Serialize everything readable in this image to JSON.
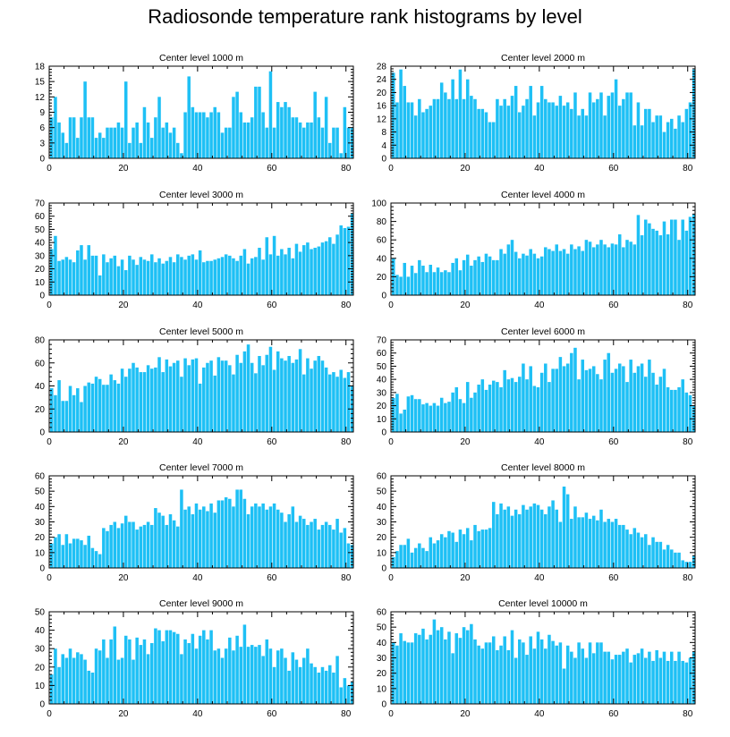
{
  "title": "Radiosonde temperature rank histograms by level",
  "bar_color": "#1ec0f5",
  "chart_data": [
    {
      "type": "bar",
      "title": "Center level 1000 m",
      "xlim": [
        0,
        82
      ],
      "ylim": [
        0,
        18
      ],
      "xticks": [
        0,
        20,
        40,
        60,
        80
      ],
      "yticks": [
        0,
        3,
        6,
        9,
        12,
        15,
        18
      ],
      "values": [
        8,
        12,
        7,
        5,
        3,
        8,
        8,
        4,
        8,
        15,
        8,
        8,
        4,
        5,
        4,
        6,
        6,
        6,
        7,
        6,
        15,
        3,
        6,
        7,
        3,
        10,
        7,
        4,
        8,
        12,
        6,
        7,
        5,
        6,
        3,
        1,
        9,
        16,
        10,
        9,
        9,
        9,
        8,
        9,
        10,
        9,
        5,
        6,
        6,
        12,
        13,
        9,
        7,
        7,
        8,
        14,
        14,
        9,
        6,
        17,
        6,
        11,
        10,
        11,
        10,
        8,
        8,
        7,
        6,
        7,
        7,
        13,
        8,
        6,
        12,
        3,
        6,
        6,
        1,
        10,
        6,
        6
      ]
    },
    {
      "type": "bar",
      "title": "Center level 2000 m",
      "xlim": [
        0,
        82
      ],
      "ylim": [
        0,
        28
      ],
      "xticks": [
        0,
        20,
        40,
        60,
        80
      ],
      "yticks": [
        0,
        4,
        8,
        12,
        16,
        20,
        24,
        28
      ],
      "values": [
        26,
        17,
        27,
        22,
        17,
        17,
        13,
        18,
        14,
        15,
        16,
        18,
        18,
        23,
        20,
        18,
        24,
        18,
        27,
        18,
        24,
        19,
        18,
        15,
        15,
        14,
        11,
        11,
        18,
        16,
        18,
        16,
        19,
        22,
        14,
        16,
        18,
        22,
        13,
        17,
        22,
        18,
        17,
        17,
        16,
        19,
        16,
        17,
        15,
        20,
        13,
        15,
        13,
        20,
        17,
        18,
        20,
        13,
        19,
        20,
        24,
        16,
        18,
        20,
        20,
        10,
        17,
        10,
        15,
        15,
        11,
        13,
        13,
        8,
        11,
        12,
        9,
        13,
        11,
        15,
        17,
        27
      ]
    },
    {
      "type": "bar",
      "title": "Center level 3000 m",
      "xlim": [
        0,
        82
      ],
      "ylim": [
        0,
        70
      ],
      "xticks": [
        0,
        20,
        40,
        60,
        80
      ],
      "yticks": [
        0,
        10,
        20,
        30,
        40,
        50,
        60,
        70
      ],
      "values": [
        35,
        45,
        26,
        27,
        29,
        27,
        25,
        34,
        38,
        27,
        38,
        30,
        30,
        15,
        31,
        25,
        28,
        30,
        22,
        27,
        19,
        30,
        27,
        23,
        29,
        27,
        26,
        31,
        25,
        28,
        24,
        26,
        29,
        25,
        31,
        29,
        27,
        30,
        31,
        27,
        34,
        25,
        26,
        26,
        27,
        28,
        29,
        31,
        30,
        28,
        26,
        30,
        35,
        24,
        28,
        29,
        36,
        27,
        44,
        31,
        45,
        30,
        35,
        31,
        36,
        28,
        39,
        33,
        38,
        40,
        35,
        36,
        37,
        40,
        41,
        44,
        39,
        46,
        53,
        51,
        52,
        62
      ]
    },
    {
      "type": "bar",
      "title": "Center level 4000 m",
      "xlim": [
        0,
        82
      ],
      "ylim": [
        0,
        100
      ],
      "xticks": [
        0,
        20,
        40,
        60,
        80
      ],
      "yticks": [
        0,
        20,
        40,
        60,
        80,
        100
      ],
      "values": [
        40,
        22,
        20,
        35,
        20,
        32,
        24,
        38,
        32,
        25,
        33,
        25,
        30,
        25,
        27,
        25,
        35,
        40,
        27,
        38,
        44,
        32,
        38,
        42,
        36,
        45,
        42,
        38,
        38,
        50,
        45,
        55,
        60,
        47,
        40,
        45,
        43,
        50,
        45,
        40,
        42,
        52,
        50,
        48,
        55,
        48,
        50,
        45,
        55,
        50,
        53,
        48,
        60,
        58,
        52,
        55,
        60,
        55,
        52,
        56,
        55,
        66,
        52,
        60,
        58,
        55,
        87,
        65,
        82,
        78,
        72,
        70,
        65,
        80,
        66,
        82,
        82,
        60,
        82,
        70,
        85,
        88
      ]
    },
    {
      "type": "bar",
      "title": "Center level 5000 m",
      "xlim": [
        0,
        82
      ],
      "ylim": [
        0,
        80
      ],
      "xticks": [
        0,
        20,
        40,
        60,
        80
      ],
      "yticks": [
        0,
        20,
        40,
        60,
        80
      ],
      "values": [
        38,
        32,
        45,
        27,
        27,
        40,
        32,
        38,
        26,
        40,
        43,
        42,
        48,
        46,
        41,
        41,
        50,
        45,
        42,
        55,
        48,
        55,
        60,
        56,
        52,
        52,
        58,
        55,
        56,
        65,
        52,
        63,
        57,
        60,
        62,
        48,
        64,
        58,
        63,
        64,
        42,
        56,
        60,
        62,
        49,
        65,
        62,
        62,
        58,
        50,
        67,
        60,
        70,
        76,
        60,
        51,
        66,
        58,
        67,
        74,
        54,
        70,
        64,
        62,
        66,
        60,
        63,
        72,
        50,
        64,
        55,
        62,
        66,
        62,
        56,
        50,
        52,
        48,
        54,
        47,
        52,
        40
      ]
    },
    {
      "type": "bar",
      "title": "Center level 6000 m",
      "xlim": [
        0,
        82
      ],
      "ylim": [
        0,
        70
      ],
      "xticks": [
        0,
        20,
        40,
        60,
        80
      ],
      "yticks": [
        0,
        10,
        20,
        30,
        40,
        50,
        60,
        70
      ],
      "values": [
        26,
        29,
        14,
        17,
        27,
        28,
        25,
        25,
        21,
        22,
        20,
        22,
        20,
        26,
        22,
        23,
        30,
        34,
        25,
        22,
        38,
        26,
        30,
        36,
        40,
        32,
        36,
        39,
        38,
        34,
        47,
        40,
        41,
        38,
        42,
        52,
        40,
        50,
        35,
        34,
        45,
        52,
        38,
        48,
        48,
        57,
        50,
        52,
        60,
        64,
        40,
        55,
        47,
        48,
        50,
        44,
        40,
        55,
        60,
        45,
        48,
        52,
        50,
        38,
        55,
        45,
        50,
        52,
        42,
        55,
        45,
        36,
        42,
        48,
        34,
        32,
        32,
        34,
        40,
        30,
        28,
        20
      ]
    },
    {
      "type": "bar",
      "title": "Center level 7000 m",
      "xlim": [
        0,
        82
      ],
      "ylim": [
        0,
        60
      ],
      "xticks": [
        0,
        20,
        40,
        60,
        80
      ],
      "yticks": [
        0,
        10,
        20,
        30,
        40,
        50,
        60
      ],
      "values": [
        16,
        20,
        22,
        15,
        22,
        16,
        19,
        19,
        18,
        15,
        21,
        13,
        11,
        9,
        26,
        24,
        28,
        30,
        26,
        29,
        34,
        30,
        30,
        25,
        27,
        28,
        30,
        28,
        39,
        36,
        34,
        28,
        35,
        31,
        27,
        51,
        38,
        40,
        35,
        42,
        38,
        40,
        37,
        42,
        36,
        44,
        44,
        46,
        45,
        40,
        51,
        51,
        45,
        35,
        40,
        42,
        40,
        42,
        38,
        40,
        42,
        38,
        36,
        30,
        35,
        40,
        30,
        34,
        32,
        28,
        30,
        32,
        25,
        28,
        30,
        28,
        25,
        32,
        23,
        26,
        16,
        15
      ]
    },
    {
      "type": "bar",
      "title": "Center level 8000 m",
      "xlim": [
        0,
        82
      ],
      "ylim": [
        0,
        60
      ],
      "xticks": [
        0,
        20,
        40,
        60,
        80
      ],
      "yticks": [
        0,
        10,
        20,
        30,
        40,
        50,
        60
      ],
      "values": [
        7,
        11,
        15,
        15,
        19,
        10,
        13,
        16,
        13,
        11,
        20,
        16,
        18,
        22,
        20,
        24,
        23,
        17,
        25,
        22,
        26,
        18,
        28,
        24,
        25,
        25,
        26,
        43,
        35,
        42,
        38,
        40,
        34,
        38,
        35,
        41,
        38,
        40,
        42,
        41,
        38,
        35,
        40,
        44,
        38,
        30,
        53,
        48,
        32,
        40,
        33,
        33,
        36,
        32,
        34,
        31,
        38,
        30,
        32,
        30,
        32,
        28,
        28,
        25,
        22,
        26,
        23,
        20,
        22,
        15,
        20,
        17,
        17,
        12,
        15,
        12,
        10,
        10,
        5,
        4,
        4,
        8
      ]
    },
    {
      "type": "bar",
      "title": "Center level 9000 m",
      "xlim": [
        0,
        82
      ],
      "ylim": [
        0,
        50
      ],
      "xticks": [
        0,
        20,
        40,
        60,
        80
      ],
      "yticks": [
        0,
        10,
        20,
        30,
        40,
        50
      ],
      "values": [
        16,
        30,
        20,
        27,
        25,
        30,
        25,
        28,
        27,
        24,
        18,
        17,
        30,
        29,
        35,
        25,
        35,
        42,
        24,
        25,
        37,
        35,
        24,
        36,
        32,
        35,
        27,
        33,
        41,
        40,
        34,
        40,
        40,
        39,
        38,
        27,
        35,
        33,
        38,
        30,
        37,
        40,
        35,
        40,
        29,
        30,
        25,
        30,
        36,
        29,
        37,
        31,
        43,
        31,
        32,
        31,
        32,
        26,
        35,
        30,
        20,
        29,
        30,
        25,
        18,
        28,
        24,
        20,
        25,
        30,
        22,
        20,
        17,
        20,
        18,
        21,
        17,
        26,
        9,
        14,
        10,
        12
      ]
    },
    {
      "type": "bar",
      "title": "Center level 10000 m",
      "xlim": [
        0,
        82
      ],
      "ylim": [
        0,
        60
      ],
      "xticks": [
        0,
        20,
        40,
        60,
        80
      ],
      "yticks": [
        0,
        10,
        20,
        30,
        40,
        50,
        60
      ],
      "values": [
        40,
        38,
        46,
        41,
        40,
        40,
        46,
        45,
        49,
        42,
        45,
        55,
        48,
        50,
        42,
        47,
        33,
        46,
        43,
        50,
        48,
        52,
        42,
        38,
        36,
        40,
        40,
        44,
        35,
        38,
        44,
        35,
        48,
        30,
        42,
        40,
        32,
        44,
        36,
        47,
        42,
        36,
        45,
        41,
        38,
        40,
        23,
        38,
        34,
        30,
        40,
        36,
        30,
        40,
        33,
        40,
        40,
        34,
        34,
        29,
        32,
        32,
        34,
        36,
        27,
        32,
        33,
        36,
        30,
        34,
        28,
        35,
        30,
        34,
        28,
        34,
        28,
        34,
        28,
        27,
        30,
        34
      ]
    }
  ]
}
